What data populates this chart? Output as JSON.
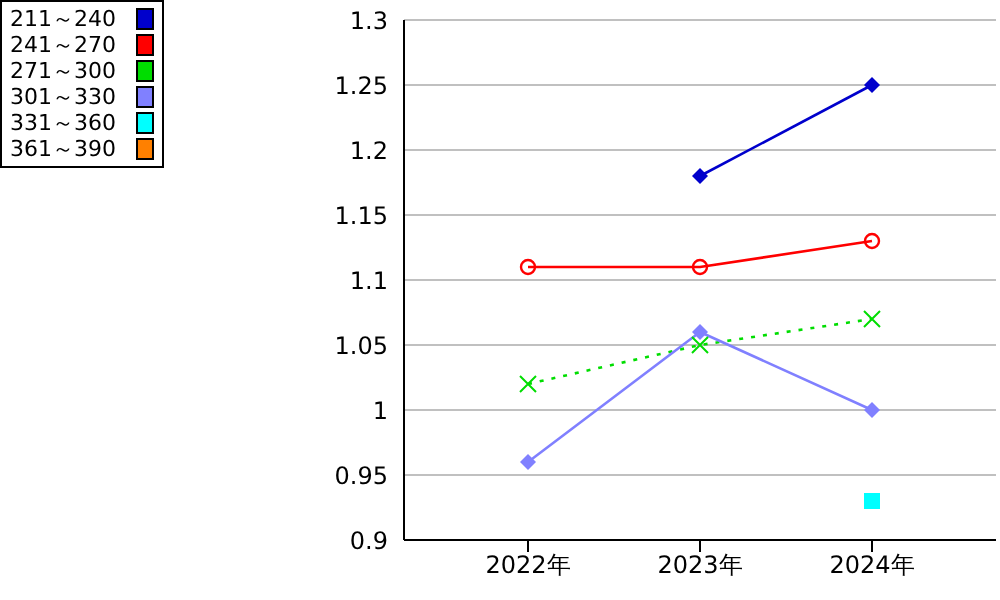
{
  "chart_data": {
    "type": "line",
    "categories": [
      "2022年",
      "2023年",
      "2024年"
    ],
    "series": [
      {
        "name": "211～240",
        "color": "#0000cc",
        "values": [
          null,
          1.18,
          1.25
        ],
        "marker": "diamond"
      },
      {
        "name": "241～270",
        "color": "#ff0000",
        "values": [
          1.11,
          1.11,
          1.13
        ],
        "marker": "circle"
      },
      {
        "name": "271～300",
        "color": "#00dd00",
        "values": [
          1.02,
          1.05,
          1.07
        ],
        "marker": "cross",
        "line_style": "dotted"
      },
      {
        "name": "301～330",
        "color": "#8080ff",
        "values": [
          0.96,
          1.06,
          1.0
        ],
        "marker": "diamond"
      },
      {
        "name": "331～360",
        "color": "#00ffff",
        "values": [
          null,
          null,
          0.93
        ],
        "marker": "square"
      },
      {
        "name": "361～390",
        "color": "#ff8000",
        "values": [
          null,
          null,
          null
        ],
        "marker": "square"
      }
    ],
    "ylim": [
      0.9,
      1.3
    ],
    "yticks": [
      0.9,
      0.95,
      1,
      1.05,
      1.1,
      1.15,
      1.2,
      1.25,
      1.3
    ],
    "grid": "y",
    "legend": "top left"
  }
}
